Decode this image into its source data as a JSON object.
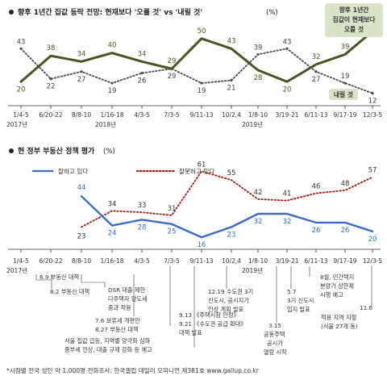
{
  "top_chart": {
    "title": "향후 1년간 집값 등락 전망: 현재보다 '오를 것' vs '내릴 것'",
    "unit": "(%)",
    "callout_up": [
      "향후 1년간",
      "집값이 현재보다",
      "오를 것"
    ],
    "callout_down": "내릴 것",
    "years": [
      "2017년",
      "2018년",
      "2019년"
    ]
  },
  "bottom_chart": {
    "title": "현 정부 부동산 정책 평가",
    "unit": "(%)",
    "years": [
      "2017년",
      "2019년"
    ],
    "policy_notes": [
      "6.9 부동산 대책",
      "8.2 부동산 대책",
      "DSR 대출 제한",
      "다주택자 양도세",
      "중과 적용",
      "7.6  보유세 개편안",
      "8.27  부동산 대책",
      "서울 집값 급등, 지역별 양극화 심화",
      "종부세 인상, 대출 규제 강화 등 예고",
      "9.13  《주택시장 안정》",
      "9.21  《수도권 공급 확대》",
      "대책 발표",
      "12.19 수도권 3기",
      "신도시, 공시지가",
      "인상 계획 발표",
      "3.15",
      "공동주택",
      "공시가",
      "열람 시작",
      "5.7",
      "3기 신도시",
      "입지 발표",
      "8월, 민간택지",
      "분양가 상한제",
      "시행 예고",
      "11.6",
      "적용 지역 지정",
      "(서울 27개 동)"
    ]
  },
  "footer": "*시점별 전국 성인 약 1,000명 전화조사. 한국갤럽 데일리 오피니언 제381호 www.gallup.co.kr",
  "colors": {
    "rise": "#4a5420",
    "fall": "#4a4a4a",
    "approve": "#3a6cc6",
    "disapprove": "#a31d1d",
    "callout_bg": "#dbe3c6"
  },
  "chart_data": [
    {
      "type": "line",
      "title": "향후 1년간 집값 등락 전망: 현재보다 '오를 것' vs '내릴 것'",
      "unit": "%",
      "categories": [
        "1/4-5",
        "6/20-22",
        "8/8-10",
        "1/16-18",
        "4/3-5",
        "7/3-5",
        "9/11-13",
        "10/2,4",
        "1/8-10",
        "3/19-21",
        "6/11-13",
        "9/17-19",
        "12/3-5"
      ],
      "series": [
        {
          "name": "오를 것",
          "style": "solid",
          "values": [
            20,
            38,
            34,
            40,
            34,
            29,
            50,
            43,
            28,
            20,
            32,
            39,
            55
          ]
        },
        {
          "name": "내릴 것",
          "style": "dotted",
          "values": [
            43,
            22,
            27,
            19,
            26,
            29,
            19,
            21,
            39,
            43,
            27,
            19,
            12
          ]
        }
      ],
      "ylim": [
        5,
        60
      ],
      "grid": false,
      "legend": "direct labels"
    },
    {
      "type": "line",
      "title": "현 정부 부동산 정책 평가",
      "unit": "%",
      "categories": [
        "1/4-5",
        "6/20-22",
        "8/8-10",
        "1/16-18",
        "4/3-5",
        "7/3-5",
        "9/11-13",
        "10/2,4",
        "1/8-10",
        "3/19-21",
        "6/11-13",
        "9/17-19",
        "12/3-5"
      ],
      "series": [
        {
          "name": "잘하고 있다",
          "style": "solid",
          "values": [
            null,
            null,
            44,
            24,
            28,
            25,
            16,
            23,
            32,
            32,
            26,
            26,
            20
          ]
        },
        {
          "name": "잘못하고 있다",
          "style": "dotted",
          "values": [
            null,
            null,
            23,
            34,
            33,
            31,
            61,
            55,
            42,
            41,
            46,
            48,
            57
          ]
        }
      ],
      "ylim": [
        10,
        65
      ],
      "grid": false,
      "legend": "top-left"
    }
  ]
}
